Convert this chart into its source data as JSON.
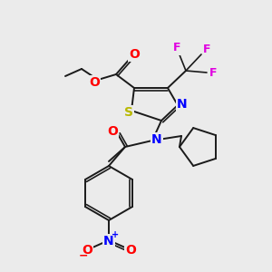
{
  "bg_color": "#ebebeb",
  "bond_color": "#1a1a1a",
  "atom_colors": {
    "O": "#ff0000",
    "S": "#b8b800",
    "N": "#0000ff",
    "F": "#e000e0",
    "C": "#1a1a1a"
  },
  "figsize": [
    3.0,
    3.0
  ],
  "dpi": 100
}
